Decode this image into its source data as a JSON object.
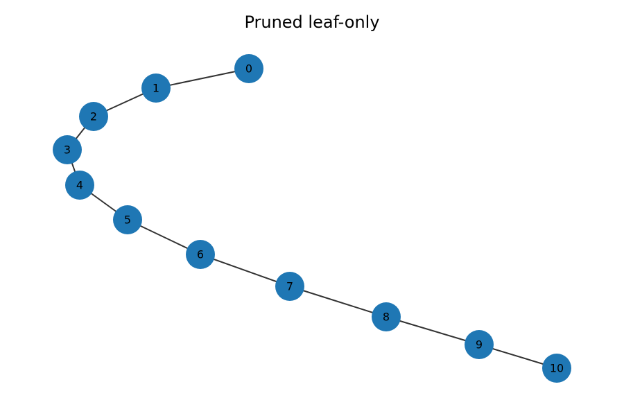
{
  "title": "Pruned leaf-only",
  "node_color": "#1f77b4",
  "edge_color": "#333333",
  "nodes": [
    {
      "id": 0,
      "label": "0"
    },
    {
      "id": 1,
      "label": "1"
    },
    {
      "id": 2,
      "label": "2"
    },
    {
      "id": 3,
      "label": "3"
    },
    {
      "id": 4,
      "label": "4"
    },
    {
      "id": 5,
      "label": "5"
    },
    {
      "id": 6,
      "label": "6"
    },
    {
      "id": 7,
      "label": "7"
    },
    {
      "id": 8,
      "label": "8"
    },
    {
      "id": 9,
      "label": "9"
    },
    {
      "id": 10,
      "label": "10"
    }
  ],
  "edges": [
    [
      0,
      1
    ],
    [
      1,
      2
    ],
    [
      2,
      3
    ],
    [
      3,
      4
    ],
    [
      4,
      5
    ],
    [
      5,
      6
    ],
    [
      6,
      7
    ],
    [
      7,
      8
    ],
    [
      8,
      9
    ],
    [
      9,
      10
    ]
  ]
}
